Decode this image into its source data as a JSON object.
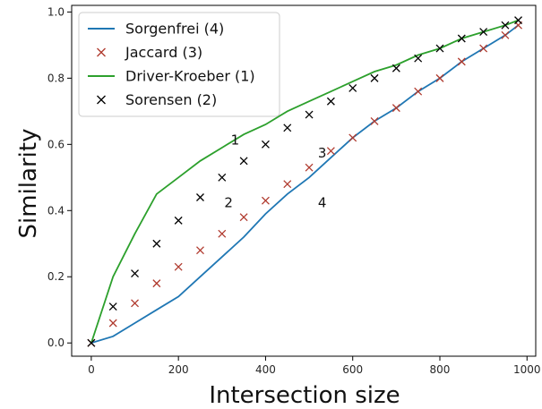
{
  "chart_data": {
    "type": "line",
    "xlabel": "Intersection size",
    "ylabel": "Similarity",
    "xlim": [
      -45,
      1020
    ],
    "ylim": [
      -0.04,
      1.02
    ],
    "x_ticks": [
      0,
      200,
      400,
      600,
      800,
      1000
    ],
    "y_ticks": [
      0.0,
      0.2,
      0.4,
      0.6,
      0.8,
      1.0
    ],
    "grid": false,
    "legend_position": "top-left",
    "series": [
      {
        "name": "Sorgenfrei (4)",
        "style": "line",
        "color": "#1f77b4",
        "x": [
          0,
          50,
          100,
          150,
          200,
          250,
          300,
          350,
          400,
          450,
          500,
          550,
          600,
          650,
          700,
          750,
          800,
          850,
          900,
          950,
          980
        ],
        "y": [
          0.0,
          0.02,
          0.06,
          0.1,
          0.14,
          0.2,
          0.26,
          0.32,
          0.39,
          0.45,
          0.5,
          0.56,
          0.62,
          0.67,
          0.71,
          0.76,
          0.8,
          0.85,
          0.89,
          0.93,
          0.96
        ]
      },
      {
        "name": "Jaccard (3)",
        "style": "markers-x",
        "color": "#b03a2e",
        "x": [
          0,
          50,
          100,
          150,
          200,
          250,
          300,
          350,
          400,
          450,
          500,
          550,
          600,
          650,
          700,
          750,
          800,
          850,
          900,
          950,
          980
        ],
        "y": [
          0.0,
          0.06,
          0.12,
          0.18,
          0.23,
          0.28,
          0.33,
          0.38,
          0.43,
          0.48,
          0.53,
          0.58,
          0.62,
          0.67,
          0.71,
          0.76,
          0.8,
          0.85,
          0.89,
          0.93,
          0.96
        ]
      },
      {
        "name": "Driver-Kroeber (1)",
        "style": "line",
        "color": "#2ca02c",
        "x": [
          0,
          50,
          100,
          150,
          200,
          250,
          300,
          350,
          400,
          450,
          500,
          550,
          600,
          650,
          700,
          750,
          800,
          850,
          900,
          950,
          980
        ],
        "y": [
          0.0,
          0.2,
          0.33,
          0.45,
          0.5,
          0.55,
          0.59,
          0.63,
          0.66,
          0.7,
          0.73,
          0.76,
          0.79,
          0.82,
          0.84,
          0.87,
          0.89,
          0.92,
          0.94,
          0.96,
          0.975
        ]
      },
      {
        "name": "Sorensen (2)",
        "style": "markers-x",
        "color": "#000000",
        "x": [
          0,
          50,
          100,
          150,
          200,
          250,
          300,
          350,
          400,
          450,
          500,
          550,
          600,
          650,
          700,
          750,
          800,
          850,
          900,
          950,
          980
        ],
        "y": [
          0.0,
          0.11,
          0.21,
          0.3,
          0.37,
          0.44,
          0.5,
          0.55,
          0.6,
          0.65,
          0.69,
          0.73,
          0.77,
          0.8,
          0.83,
          0.86,
          0.89,
          0.92,
          0.94,
          0.96,
          0.975
        ]
      }
    ],
    "annotations": [
      {
        "text": "1",
        "x": 330,
        "y": 0.6
      },
      {
        "text": "2",
        "x": 315,
        "y": 0.41
      },
      {
        "text": "3",
        "x": 530,
        "y": 0.56
      },
      {
        "text": "4",
        "x": 530,
        "y": 0.41
      }
    ]
  }
}
